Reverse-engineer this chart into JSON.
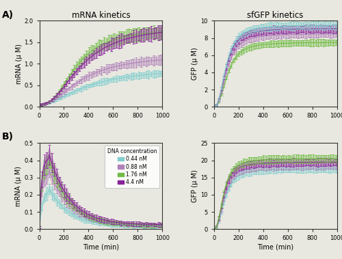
{
  "title_left": "mRNA kinetics",
  "title_right": "sfGFP kinetics",
  "label_A": "A)",
  "label_B": "B)",
  "xlabel": "Time (min)",
  "ylabel_mrna": "mRNA (μ M)",
  "ylabel_gfp": "GFP (μ M)",
  "xmax": 1000,
  "colors": {
    "0.44 nM": "#80cece",
    "0.88 nM": "#b080b8",
    "1.76 nM": "#70bb44",
    "4.4 nM": "#882299"
  },
  "legend_title": "DNA concentration",
  "legend_labels": [
    "0.44 nM",
    "0.88 nM",
    "1.76 nM",
    "4.4 nM"
  ],
  "A_mrna_ylim": [
    0,
    2.0
  ],
  "A_mrna_yticks": [
    0,
    0.5,
    1.0,
    1.5,
    2.0
  ],
  "A_gfp_ylim": [
    0,
    10
  ],
  "A_gfp_yticks": [
    0,
    2,
    4,
    6,
    8,
    10
  ],
  "B_mrna_ylim": [
    0,
    0.5
  ],
  "B_mrna_yticks": [
    0,
    0.1,
    0.2,
    0.3,
    0.4,
    0.5
  ],
  "B_gfp_ylim": [
    0,
    25
  ],
  "B_gfp_yticks": [
    0,
    5,
    10,
    15,
    20,
    25
  ],
  "n_points": 100,
  "background_color": "#e8e8e0"
}
